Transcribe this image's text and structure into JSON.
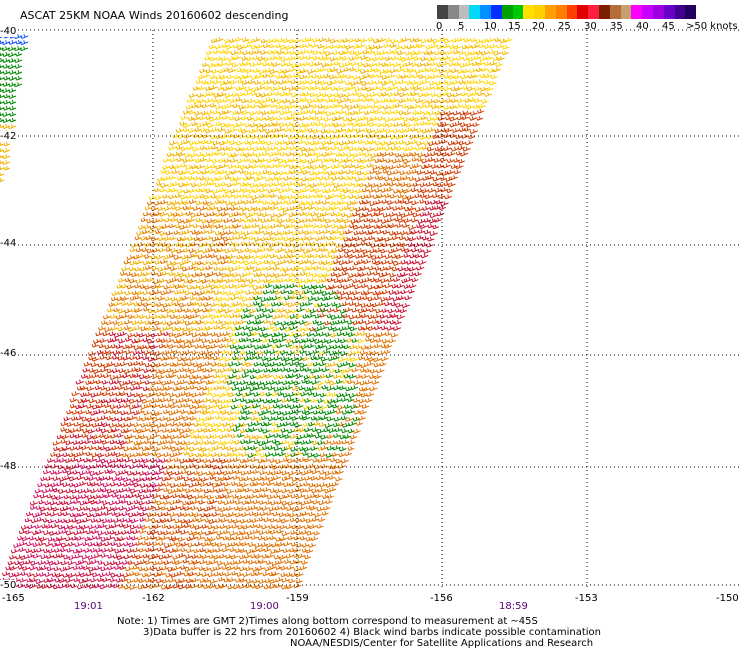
{
  "title": "ASCAT 25KM NOAA Winds 20160602 descending",
  "colorbar": {
    "colors": [
      "#444444",
      "#888888",
      "#bbbbbb",
      "#00d8f8",
      "#0090ff",
      "#0030ff",
      "#00a000",
      "#00c800",
      "#ffe000",
      "#ffd000",
      "#ffa000",
      "#ff8000",
      "#ff4000",
      "#e00000",
      "#ff2040",
      "#7a2000",
      "#b46e3c",
      "#c8a070",
      "#ff00ff",
      "#c800ff",
      "#a000e0",
      "#6a00c8",
      "#400090",
      "#200060"
    ],
    "labels": [
      "0",
      "5",
      "10",
      "15",
      "20",
      "25",
      "30",
      "35",
      "40",
      "45",
      ">50 knots"
    ]
  },
  "axes": {
    "lat_labels": [
      "-40",
      "-42",
      "-44",
      "-46",
      "-48",
      "-50"
    ],
    "lon_labels": [
      "-165",
      "-162",
      "-159",
      "-156",
      "-153",
      "-150"
    ],
    "time_labels": [
      "19:01",
      "19:00",
      "18:59"
    ]
  },
  "notes": [
    "Note: 1) Times are GMT 2)Times along bottom correspond to measurement at ~45S",
    "3)Data buffer is 22 hrs from 20160602 4) Black wind barbs indicate possible contamination",
    "NOAA/NESDIS/Center for Satellite Applications and Research"
  ],
  "wind_colors": {
    "yellow": "#ffd400",
    "gold": "#f0b000",
    "orange": "#e07000",
    "red": "#d03a00",
    "crimson": "#c81030",
    "magenta": "#d01060",
    "green": "#008800"
  }
}
